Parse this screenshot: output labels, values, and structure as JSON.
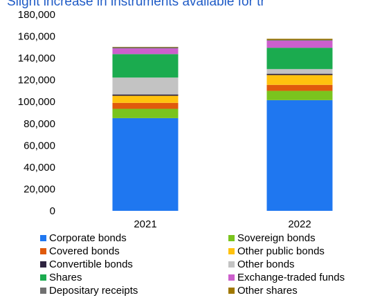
{
  "chart_data": {
    "type": "bar",
    "stacked": true,
    "title": "Slight increase in instruments available for tr",
    "xlabel": "",
    "ylabel": "",
    "categories": [
      "2021",
      "2022"
    ],
    "ylim": [
      0,
      180000
    ],
    "yticks": [
      0,
      20000,
      40000,
      60000,
      80000,
      100000,
      120000,
      140000,
      160000,
      180000
    ],
    "ytick_labels": [
      "0",
      "20,000",
      "40,000",
      "60,000",
      "80,000",
      "100,000",
      "120,000",
      "140,000",
      "160,000",
      "180,000"
    ],
    "grid": false,
    "legend_position": "bottom",
    "series": [
      {
        "name": "Corporate bonds",
        "color": "#1f77f0",
        "values": [
          85000,
          101500
        ]
      },
      {
        "name": "Sovereign bonds",
        "color": "#7ac41e",
        "values": [
          8500,
          8500
        ]
      },
      {
        "name": "Covered bonds",
        "color": "#e05a0c",
        "values": [
          5500,
          5500
        ]
      },
      {
        "name": "Other public bonds",
        "color": "#ffc20e",
        "values": [
          6500,
          9000
        ]
      },
      {
        "name": "Convertible bonds",
        "color": "#2e2440",
        "values": [
          1200,
          1200
        ]
      },
      {
        "name": "Other bonds",
        "color": "#c3c3c3",
        "values": [
          15500,
          4300
        ]
      },
      {
        "name": "Shares",
        "color": "#1bab4f",
        "values": [
          21500,
          19500
        ]
      },
      {
        "name": "Exchange-traded funds",
        "color": "#cc5fcc",
        "values": [
          5200,
          6500
        ]
      },
      {
        "name": "Depositary receipts",
        "color": "#707070",
        "values": [
          1000,
          800
        ]
      },
      {
        "name": "Other shares",
        "color": "#a07800",
        "values": [
          400,
          1000
        ]
      }
    ]
  }
}
